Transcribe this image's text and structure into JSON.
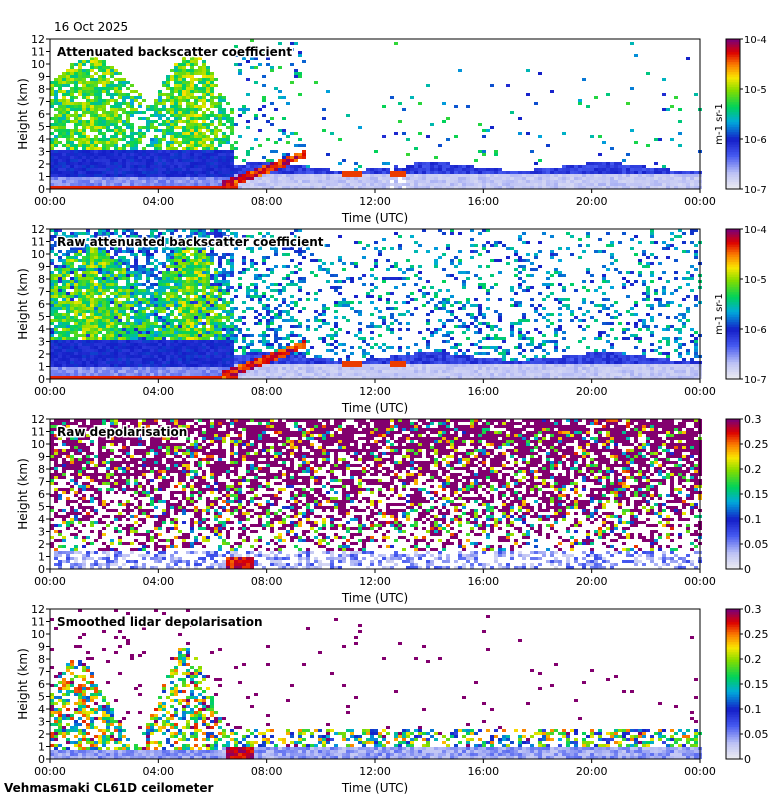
{
  "header": {
    "date": "16 Oct 2025"
  },
  "footer": {
    "site": "Vehmasmaki CL61D ceilometer"
  },
  "chart_data": [
    {
      "type": "heatmap",
      "title": "Attenuated backscatter coefficient",
      "xlabel": "Time (UTC)",
      "ylabel": "Height (km)",
      "x_ticks": [
        "00:00",
        "04:00",
        "08:00",
        "12:00",
        "16:00",
        "20:00",
        "00:00"
      ],
      "x_range_hours": [
        0,
        24
      ],
      "y_ticks": [
        "0",
        "1",
        "2",
        "3",
        "4",
        "5",
        "6",
        "7",
        "8",
        "9",
        "10",
        "11",
        "12"
      ],
      "y_range_km": [
        0,
        12
      ],
      "colorbar": {
        "scale": "log",
        "label": "m-1 sr-1",
        "range": [
          1e-07,
          0.0001
        ],
        "ticks": [
          "10-7",
          "10-6",
          "10-5",
          "10-4"
        ]
      }
    },
    {
      "type": "heatmap",
      "title": "Raw attenuated backscatter coefficient",
      "xlabel": "Time (UTC)",
      "ylabel": "Height (km)",
      "x_ticks": [
        "00:00",
        "04:00",
        "08:00",
        "12:00",
        "16:00",
        "20:00",
        "00:00"
      ],
      "x_range_hours": [
        0,
        24
      ],
      "y_ticks": [
        "0",
        "1",
        "2",
        "3",
        "4",
        "5",
        "6",
        "7",
        "8",
        "9",
        "10",
        "11",
        "12"
      ],
      "y_range_km": [
        0,
        12
      ],
      "colorbar": {
        "scale": "log",
        "label": "m-1 sr-1",
        "range": [
          1e-07,
          0.0001
        ],
        "ticks": [
          "10-7",
          "10-6",
          "10-5",
          "10-4"
        ]
      }
    },
    {
      "type": "heatmap",
      "title": "Raw depolarisation",
      "xlabel": "Time (UTC)",
      "ylabel": "Height (km)",
      "x_ticks": [
        "00:00",
        "04:00",
        "08:00",
        "12:00",
        "16:00",
        "20:00",
        "00:00"
      ],
      "x_range_hours": [
        0,
        24
      ],
      "y_ticks": [
        "0",
        "1",
        "2",
        "3",
        "4",
        "5",
        "6",
        "7",
        "8",
        "9",
        "10",
        "11",
        "12"
      ],
      "y_range_km": [
        0,
        12
      ],
      "colorbar": {
        "scale": "linear",
        "label": "",
        "range": [
          0,
          0.3
        ],
        "ticks": [
          "0",
          "0.05",
          "0.1",
          "0.15",
          "0.2",
          "0.25",
          "0.3"
        ]
      }
    },
    {
      "type": "heatmap",
      "title": "Smoothed lidar depolarisation",
      "xlabel": "Time (UTC)",
      "ylabel": "Height (km)",
      "x_ticks": [
        "00:00",
        "04:00",
        "08:00",
        "12:00",
        "16:00",
        "20:00",
        "00:00"
      ],
      "x_range_hours": [
        0,
        24
      ],
      "y_ticks": [
        "0",
        "1",
        "2",
        "3",
        "4",
        "5",
        "6",
        "7",
        "8",
        "9",
        "10",
        "11",
        "12"
      ],
      "y_range_km": [
        0,
        12
      ],
      "colorbar": {
        "scale": "linear",
        "label": "",
        "range": [
          0,
          0.3
        ],
        "ticks": [
          "0",
          "0.05",
          "0.1",
          "0.15",
          "0.2",
          "0.25",
          "0.3"
        ]
      }
    }
  ]
}
